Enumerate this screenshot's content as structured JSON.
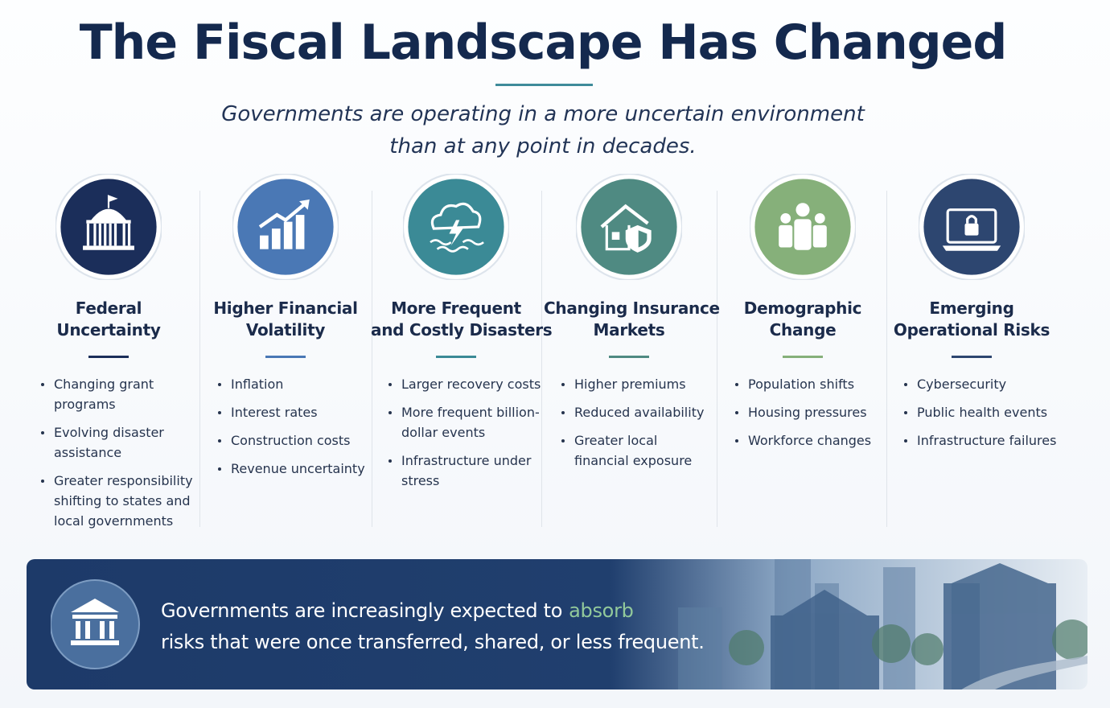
{
  "header": {
    "title": "The Fiscal Landscape Has Changed",
    "subtitle_lines": [
      "Governments are operating in a more uncertain environment",
      "than at any point in decades."
    ]
  },
  "columns": [
    {
      "title_lines": [
        "Federal",
        "Uncertainty"
      ],
      "bullets": [
        "Changing grant programs",
        "Evolving disaster assistance",
        "Greater responsibility shifting to states and local governments"
      ]
    },
    {
      "title_lines": [
        "Higher Financial",
        "Volatility"
      ],
      "bullets": [
        "Inflation",
        "Interest rates",
        "Construction costs",
        "Revenue uncertainty"
      ]
    },
    {
      "title_lines": [
        "More Frequent",
        "and Costly Disasters"
      ],
      "bullets": [
        "Larger recovery costs",
        "More frequent billion-dollar events",
        "Infrastructure under stress"
      ]
    },
    {
      "title_lines": [
        "Changing Insurance",
        "Markets"
      ],
      "bullets": [
        "Higher premiums",
        "Reduced availability",
        "Greater local financial exposure"
      ]
    },
    {
      "title_lines": [
        "Demographic",
        "Change"
      ],
      "bullets": [
        "Population shifts",
        "Housing pressures",
        "Workforce changes"
      ]
    },
    {
      "title_lines": [
        "Emerging",
        "Operational Risks"
      ],
      "bullets": [
        "Cybersecurity",
        "Public health events",
        "Infrastructure failures"
      ]
    }
  ],
  "banner": {
    "text_start": "Governments are increasingly expected to",
    "highlight": "absorb",
    "text_end": "risks that were once transferred, shared, or less frequent."
  }
}
